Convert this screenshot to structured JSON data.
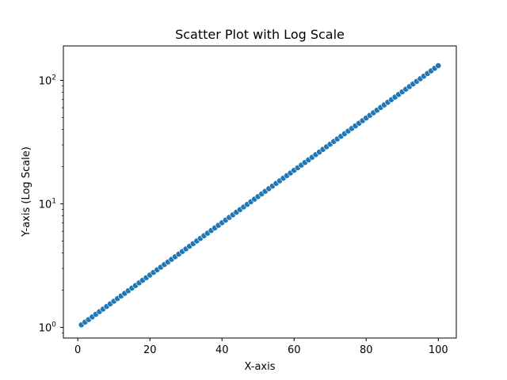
{
  "chart_data": {
    "type": "scatter",
    "title": "Scatter Plot with Log Scale",
    "xlabel": "X-axis",
    "ylabel": "Y-axis (Log Scale)",
    "xlim": [
      -4,
      105
    ],
    "ylim": [
      0.82,
      190
    ],
    "yscale": "log",
    "x_ticks": [
      0,
      20,
      40,
      60,
      80,
      100
    ],
    "x_tick_labels": [
      "0",
      "20",
      "40",
      "60",
      "80",
      "100"
    ],
    "y_ticks": [
      {
        "value": 1,
        "base": "10",
        "exp": "0"
      },
      {
        "value": 10,
        "base": "10",
        "exp": "1"
      },
      {
        "value": 100,
        "base": "10",
        "exp": "2"
      }
    ],
    "grid": false,
    "legend": "none",
    "series": [
      {
        "color": "#1f77b4",
        "x_start": 1,
        "x_end": 100,
        "x_step": 1,
        "y_first": 1.05,
        "y_growth": 1.05
      }
    ]
  }
}
